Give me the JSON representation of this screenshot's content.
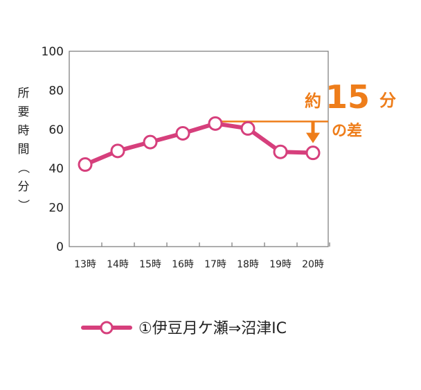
{
  "chart_data": {
    "type": "line",
    "categories": [
      "13時",
      "14時",
      "15時",
      "16時",
      "17時",
      "18時",
      "19時",
      "20時"
    ],
    "series": [
      {
        "name": "①伊豆月ケ瀬⇒沼津IC",
        "color": "#d63f7c",
        "values": [
          42,
          49,
          53.5,
          58,
          63,
          60.5,
          48.5,
          48
        ]
      }
    ],
    "ylabel": "所要時間（分）",
    "ylim": [
      0,
      100
    ],
    "yticks": [
      0,
      20,
      40,
      60,
      80,
      100
    ],
    "grid": false,
    "annotation": {
      "prefix": "約",
      "value": "15",
      "unit": "分",
      "suffix": "の差",
      "color": "#ee7d1a",
      "from_category": "17時",
      "to_category": "20時"
    },
    "legend_position": "bottom"
  }
}
